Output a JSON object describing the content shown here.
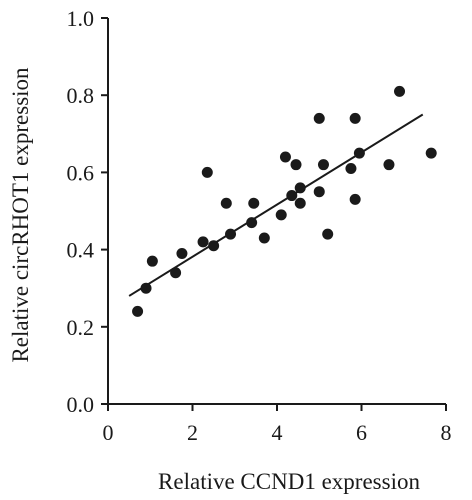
{
  "chart_data": {
    "type": "scatter",
    "xlabel": "Relative CCND1 expression",
    "ylabel": "Relative circRHOT1 expression",
    "xlim": [
      0,
      8
    ],
    "ylim": [
      0,
      1.0
    ],
    "x_ticks": [
      "0",
      "2",
      "4",
      "6",
      "8"
    ],
    "y_ticks": [
      "0.0",
      "0.2",
      "0.4",
      "0.6",
      "0.8",
      "1.0"
    ],
    "grid": false,
    "legend": "none",
    "point_color": "#1a1a1a",
    "points": [
      {
        "x": 0.7,
        "y": 0.24
      },
      {
        "x": 0.9,
        "y": 0.3
      },
      {
        "x": 1.05,
        "y": 0.37
      },
      {
        "x": 1.6,
        "y": 0.34
      },
      {
        "x": 1.75,
        "y": 0.39
      },
      {
        "x": 2.25,
        "y": 0.42
      },
      {
        "x": 2.35,
        "y": 0.6
      },
      {
        "x": 2.5,
        "y": 0.41
      },
      {
        "x": 2.8,
        "y": 0.52
      },
      {
        "x": 2.9,
        "y": 0.44
      },
      {
        "x": 3.4,
        "y": 0.47
      },
      {
        "x": 3.45,
        "y": 0.52
      },
      {
        "x": 3.7,
        "y": 0.43
      },
      {
        "x": 4.1,
        "y": 0.49
      },
      {
        "x": 4.2,
        "y": 0.64
      },
      {
        "x": 4.35,
        "y": 0.54
      },
      {
        "x": 4.45,
        "y": 0.62
      },
      {
        "x": 4.55,
        "y": 0.52
      },
      {
        "x": 4.55,
        "y": 0.56
      },
      {
        "x": 5.0,
        "y": 0.74
      },
      {
        "x": 5.0,
        "y": 0.55
      },
      {
        "x": 5.1,
        "y": 0.62
      },
      {
        "x": 5.2,
        "y": 0.44
      },
      {
        "x": 5.75,
        "y": 0.61
      },
      {
        "x": 5.85,
        "y": 0.74
      },
      {
        "x": 5.85,
        "y": 0.53
      },
      {
        "x": 5.95,
        "y": 0.65
      },
      {
        "x": 6.65,
        "y": 0.62
      },
      {
        "x": 6.9,
        "y": 0.81
      },
      {
        "x": 7.65,
        "y": 0.65
      }
    ],
    "trendline": {
      "x": [
        0.5,
        7.45
      ],
      "y": [
        0.28,
        0.75
      ]
    }
  }
}
